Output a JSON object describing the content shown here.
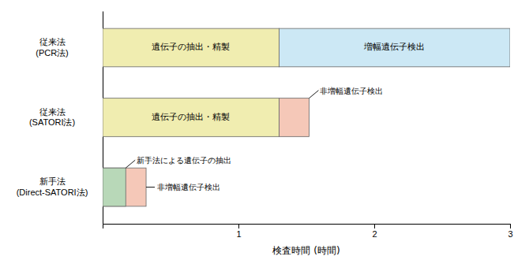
{
  "chart_data": {
    "type": "bar",
    "orientation": "horizontal",
    "categories": [
      "新手法\n(Direct-SATORI法)",
      "従来法\n(SATORI法)",
      "従来法\n(PCR法)"
    ],
    "bars": [
      [
        {
          "start": 0,
          "end": 0.17,
          "color": "#b8d8b8",
          "annotation": "新手法による遺伝子の抽出"
        },
        {
          "start": 0,
          "end": 0.32,
          "color": "#f5c8b8",
          "annotation": "非増幅遺伝子検出"
        }
      ],
      [
        {
          "start": 0,
          "end": 1.3,
          "color": "#f0edb0",
          "label": "遺伝子の抽出・精製"
        },
        {
          "start": 1.3,
          "end": 1.52,
          "color": "#f5c8b8",
          "annotation": "非増幅遺伝子検出"
        }
      ],
      [
        {
          "start": 0,
          "end": 1.3,
          "color": "#f0edb0",
          "label": "遺伝子の抽出・精製"
        },
        {
          "start": 1.3,
          "end": 3.0,
          "color": "#cce8f5",
          "label": "増幅遺伝子検出"
        }
      ]
    ],
    "xlim": [
      0,
      3
    ],
    "xticks": [
      1,
      2,
      3
    ],
    "xlabel": "検査時間 (時間)"
  }
}
